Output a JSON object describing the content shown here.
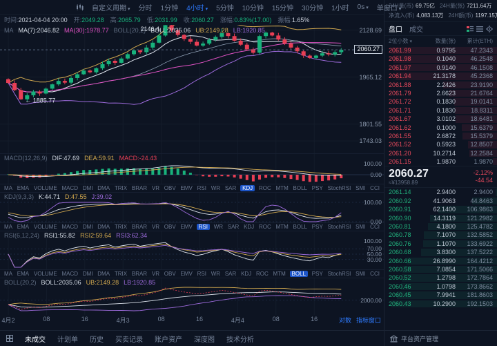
{
  "colors": {
    "green": "#18b27c",
    "red": "#e83f55",
    "yellow": "#d2a94f",
    "purple": "#9d6bdc",
    "magenta": "#e052c4",
    "blue": "#2e7bff",
    "white_line": "#dfe5ee",
    "grid": "#141c2b"
  },
  "toolbar": {
    "period_dropdown": "自定义周期",
    "timeframes": [
      "分时",
      "1分钟",
      "4小时",
      "5分钟",
      "10分钟",
      "15分钟",
      "30分钟",
      "1小时"
    ],
    "active_timeframe": "4小时",
    "duration_dropdown": "0s",
    "window_dropdown": "单窗口"
  },
  "info_bar": {
    "items": [
      {
        "label": "时间:",
        "value": "2021-04-04 20:00",
        "tone": "plain"
      },
      {
        "label": "开:",
        "value": "2049.28",
        "tone": "up"
      },
      {
        "label": "高:",
        "value": "2065.79",
        "tone": "up"
      },
      {
        "label": "低:",
        "value": "2031.99",
        "tone": "up"
      },
      {
        "label": "收:",
        "value": "2060.27",
        "tone": "up"
      },
      {
        "label": "涨幅:",
        "value": "0.83%(17.00)",
        "tone": "up"
      },
      {
        "label": "振幅:",
        "value": "1.65%",
        "tone": "plain"
      }
    ]
  },
  "legend_main": {
    "items": [
      {
        "text": "MA",
        "tone": "muted"
      },
      {
        "text": "MA(7):2046.82",
        "tone": "white"
      },
      {
        "text": "MA(30):1978.77",
        "tone": "magenta"
      },
      {
        "text": "BOLL(20,2)",
        "tone": "muted"
      },
      {
        "text": "BOLL:2035.06",
        "tone": "white"
      },
      {
        "text": "UB:2149.28",
        "tone": "yellow"
      },
      {
        "text": "LB:1920.85",
        "tone": "purple"
      }
    ]
  },
  "chart_data": {
    "type": "candlestick",
    "timeframe": "4小时",
    "current_price": 2060.27,
    "y_domain": [
      1700,
      2147
    ],
    "y_axis_labels": [
      2128.69,
      1965.12,
      1801.55,
      1743.03
    ],
    "x_axis_labels": [
      "4月2",
      "08",
      "16",
      "4月3",
      "08",
      "16",
      "4月4",
      "08",
      "16"
    ],
    "annotations": [
      {
        "text": "2146.4",
        "index": 25,
        "anchor": "high"
      },
      {
        "text": "← 1885.77",
        "index": 2,
        "anchor": "low"
      }
    ],
    "candles": {
      "first_open": 1958,
      "closes": [
        1945,
        1920,
        1888,
        1902,
        1915,
        1908,
        1925,
        1940,
        1952,
        1946,
        1962,
        1975,
        1988,
        1982,
        1996,
        2010,
        2022,
        2015,
        2030,
        2045,
        2058,
        2052,
        2068,
        2085,
        2110,
        2146,
        2128,
        2112,
        2098,
        2088,
        2075,
        2082,
        2095,
        2105,
        2118,
        2108,
        2092,
        2078,
        2062,
        2050,
        2108,
        2120,
        2110,
        2096,
        2082,
        2068,
        2055,
        2040,
        2032,
        2040,
        2048,
        2044,
        2052,
        2060.27
      ],
      "high_overrides": {
        "25": 2146.4,
        "34": 2135
      },
      "low_overrides": {
        "2": 1885.77
      }
    }
  },
  "macd": {
    "label": "MACD(12,26,9)",
    "dif": "DIF:47.69",
    "dea": "DEA:59.91",
    "macd": "MACD:-24.43",
    "scale_top": "100.00",
    "scale_bottom": "0.00"
  },
  "kdj": {
    "label": "KDJ(9,3,3)",
    "k": "K:44.71",
    "d": "D:47.55",
    "j": "J:39.02",
    "scale_top": "100.00",
    "scale_bottom": "0.00"
  },
  "rsi": {
    "label": "RSI(6,12,24)",
    "r1": "RSI1:55.82",
    "r2": "RSI2:59.64",
    "r3": "RSI3:62.34",
    "s100": "100.00",
    "s70": "70.00",
    "s50": "50.00",
    "s30": "30.00"
  },
  "boll_pane": {
    "label": "BOLL(20,2)",
    "b": "BOLL:2035.06",
    "ub": "UB:2149.28",
    "lb": "LB:1920.85",
    "s2000": "2000.00"
  },
  "indicator_tabs": {
    "items": [
      "MA",
      "EMA",
      "VOLUME",
      "MACD",
      "DMI",
      "DMA",
      "TRIX",
      "BRAR",
      "VR",
      "OBV",
      "EMV",
      "RSI",
      "WR",
      "SAR",
      "KDJ",
      "ROC",
      "MTM",
      "BOLL",
      "PSY",
      "StochRSI",
      "SMI",
      "CCI"
    ],
    "rows": [
      {
        "active": "KDJ"
      },
      {
        "active": "RSI"
      },
      {
        "active": "BOLL"
      }
    ]
  },
  "x_axis_links": [
    "对数",
    "指标窗口"
  ],
  "bottom_tabs": {
    "items": [
      "未成交",
      "计划单",
      "历史",
      "买卖记录",
      "账户资产",
      "深度图",
      "技术分析"
    ],
    "active": "未成交"
  },
  "right_panel": {
    "stats": [
      {
        "label": "24H量(币)",
        "value": "69.75亿"
      },
      {
        "label": "24H量(张)",
        "value": "7211.64万"
      },
      {
        "label": "净流入(币)",
        "value": "4,083.13万"
      },
      {
        "label": "24H额(币)",
        "value": "1197.15万"
      }
    ],
    "tabs": {
      "book": "盘口",
      "trades": "成交",
      "active": "盘口"
    },
    "header": {
      "decimals": "2位小数",
      "qty": "数量(张)",
      "cum": "累计(ETH)"
    },
    "asks": [
      [
        "2061.99",
        "0.9795",
        "47.2343"
      ],
      [
        "2061.98",
        "0.1040",
        "46.2548"
      ],
      [
        "2061.97",
        "0.9140",
        "46.1508"
      ],
      [
        "2061.94",
        "21.3178",
        "45.2368"
      ],
      [
        "2061.88",
        "2.2426",
        "23.9190"
      ],
      [
        "2061.79",
        "2.6623",
        "21.6764"
      ],
      [
        "2061.72",
        "0.1830",
        "19.0141"
      ],
      [
        "2061.71",
        "0.1830",
        "18.8311"
      ],
      [
        "2061.67",
        "3.0102",
        "18.6481"
      ],
      [
        "2061.62",
        "0.1000",
        "15.6379"
      ],
      [
        "2061.55",
        "2.6872",
        "15.5379"
      ],
      [
        "2061.52",
        "0.5923",
        "12.8507"
      ],
      [
        "2061.20",
        "10.2714",
        "12.2584"
      ],
      [
        "2061.15",
        "1.9870",
        "1.9870"
      ]
    ],
    "mid": {
      "price": "2060.27",
      "fiat": "≈¥13958.89",
      "pct": "-2.12%",
      "basis": "-44.54"
    },
    "bids": [
      [
        "2061.14",
        "2.9400",
        "2.9400"
      ],
      [
        "2060.92",
        "41.9063",
        "44.8463"
      ],
      [
        "2060.91",
        "62.1400",
        "106.9863"
      ],
      [
        "2060.90",
        "14.3119",
        "121.2982"
      ],
      [
        "2060.81",
        "4.1800",
        "125.4782"
      ],
      [
        "2060.78",
        "7.1070",
        "132.5852"
      ],
      [
        "2060.76",
        "1.1070",
        "133.6922"
      ],
      [
        "2060.68",
        "3.8300",
        "137.5222"
      ],
      [
        "2060.66",
        "26.8990",
        "164.4212"
      ],
      [
        "2060.58",
        "7.0854",
        "171.5066"
      ],
      [
        "2060.52",
        "1.2798",
        "172.7864"
      ],
      [
        "2060.46",
        "1.0798",
        "173.8662"
      ],
      [
        "2060.45",
        "7.9941",
        "181.8603"
      ],
      [
        "2060.43",
        "10.2900",
        "192.1503"
      ]
    ],
    "asset_link": "平台资产管理"
  }
}
